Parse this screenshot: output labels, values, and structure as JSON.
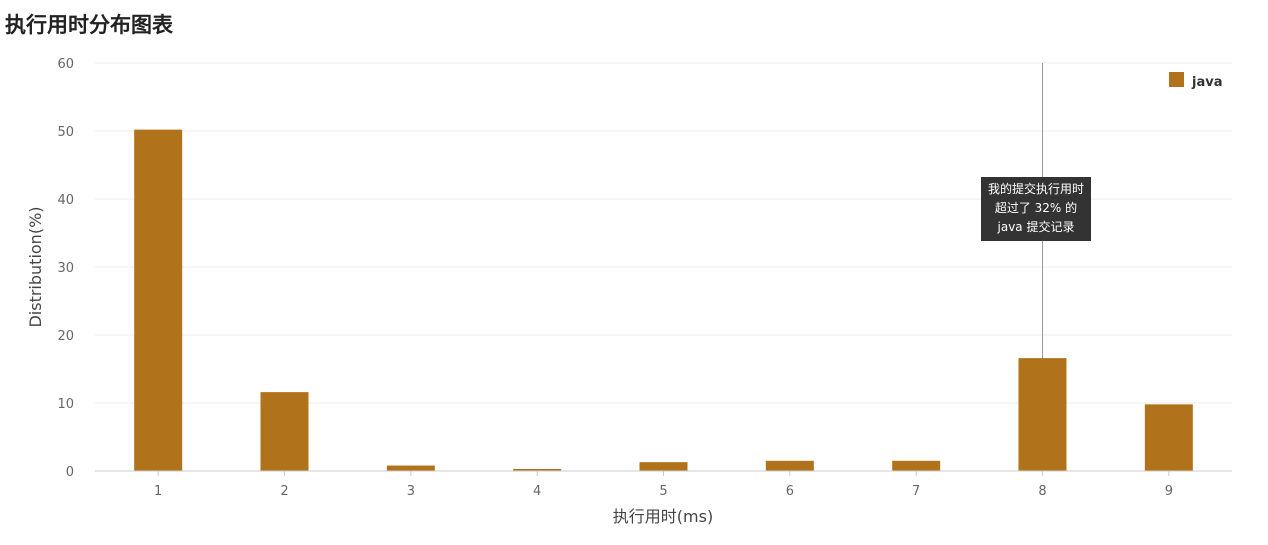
{
  "page": {
    "title": "执行用时分布图表"
  },
  "chart_data": {
    "type": "bar",
    "title": "执行用时分布图表",
    "xlabel": "执行用时(ms)",
    "ylabel": "Distribution(%)",
    "categories": [
      "1",
      "2",
      "3",
      "4",
      "5",
      "6",
      "7",
      "8",
      "9"
    ],
    "series": [
      {
        "name": "java",
        "color": "#b0731b",
        "values": [
          50.2,
          11.6,
          0.8,
          0.3,
          1.3,
          1.5,
          1.5,
          16.6,
          9.8
        ]
      }
    ],
    "ylim": [
      0,
      60
    ],
    "yticks": [
      0,
      10,
      20,
      30,
      40,
      50,
      60
    ],
    "grid": true,
    "legend_position": "top-right",
    "marker": {
      "category": "8",
      "color": "#999999"
    },
    "tooltip": {
      "lines": [
        "我的提交执行用时",
        "超过了 32% 的",
        "java 提交记录"
      ]
    }
  }
}
